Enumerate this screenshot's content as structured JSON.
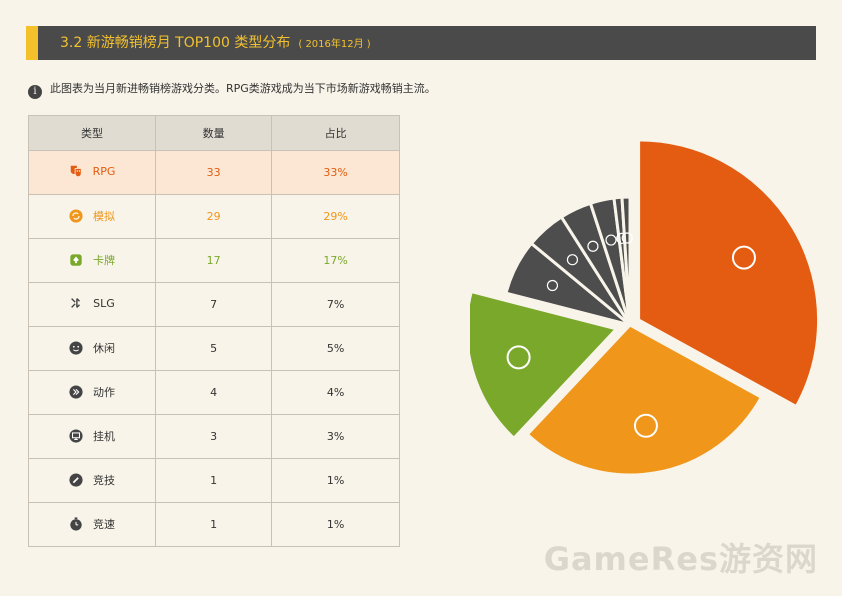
{
  "header": {
    "title": "3.2  新游畅销榜月 TOP100 类型分布",
    "subtitle": "( 2016年12月 )"
  },
  "note": "此图表为当月新进畅销榜游戏分类。RPG类游戏成为当下市场新游戏畅销主流。",
  "table": {
    "headers": [
      "类型",
      "数量",
      "占比"
    ],
    "rows": [
      {
        "icon": "theater-masks-icon",
        "type": "RPG",
        "count": "33",
        "share": "33%"
      },
      {
        "icon": "refresh-cycle-icon",
        "type": "模拟",
        "count": "29",
        "share": "29%"
      },
      {
        "icon": "playing-card-spade-icon",
        "type": "卡牌",
        "count": "17",
        "share": "17%"
      },
      {
        "icon": "strategy-arrows-icon",
        "type": "SLG",
        "count": "7",
        "share": "7%"
      },
      {
        "icon": "smiley-face-icon",
        "type": "休闲",
        "count": "5",
        "share": "5%"
      },
      {
        "icon": "fast-forward-icon",
        "type": "动作",
        "count": "4",
        "share": "4%"
      },
      {
        "icon": "monitor-icon",
        "type": "挂机",
        "count": "3",
        "share": "3%"
      },
      {
        "icon": "pen-icon",
        "type": "竞技",
        "count": "1",
        "share": "1%"
      },
      {
        "icon": "stopwatch-icon",
        "type": "竞速",
        "count": "1",
        "share": "1%"
      }
    ]
  },
  "watermark": "GameRes游资网",
  "chart_data": {
    "type": "pie",
    "categories": [
      "RPG",
      "模拟",
      "卡牌",
      "SLG",
      "休闲",
      "动作",
      "挂机",
      "竞技",
      "竞速"
    ],
    "values": [
      33,
      29,
      17,
      7,
      5,
      4,
      3,
      1,
      1
    ],
    "colors": [
      "#e35c11",
      "#f0961b",
      "#7aa82a",
      "#4d4d4d",
      "#4d4d4d",
      "#4d4d4d",
      "#4d4d4d",
      "#4d4d4d",
      "#4d4d4d"
    ],
    "exploded": [
      "RPG",
      "卡牌"
    ],
    "legend": "none"
  }
}
